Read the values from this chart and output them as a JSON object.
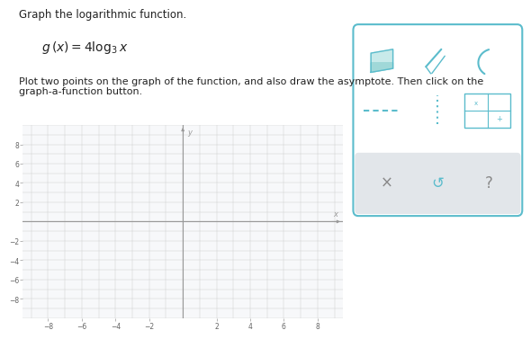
{
  "title_text": "Graph the logarithmic function.",
  "formula_line1": "g(x) = 4log",
  "formula_sub": "3",
  "formula_line2": " x",
  "instruction_text": "Plot two points on the graph of the function, and also draw the asymptote. Then click on the graph-a-function button.",
  "graph_xlim": [
    -9.5,
    9.5
  ],
  "graph_ylim": [
    -10,
    10
  ],
  "xticks": [
    -8,
    -6,
    -4,
    -2,
    2,
    4,
    6,
    8
  ],
  "yticks": [
    -8,
    -6,
    -4,
    -2,
    2,
    4,
    6,
    8
  ],
  "grid_color": "#d0d0d0",
  "axis_color": "#999999",
  "bg_color": "#ffffff",
  "graph_bg": "#f7f8fa",
  "tick_label_color": "#666666",
  "text_color": "#222222",
  "border_color": "#5bbccc",
  "gray_panel_color": "#e2e6ea",
  "icon_color": "#5bbccc"
}
